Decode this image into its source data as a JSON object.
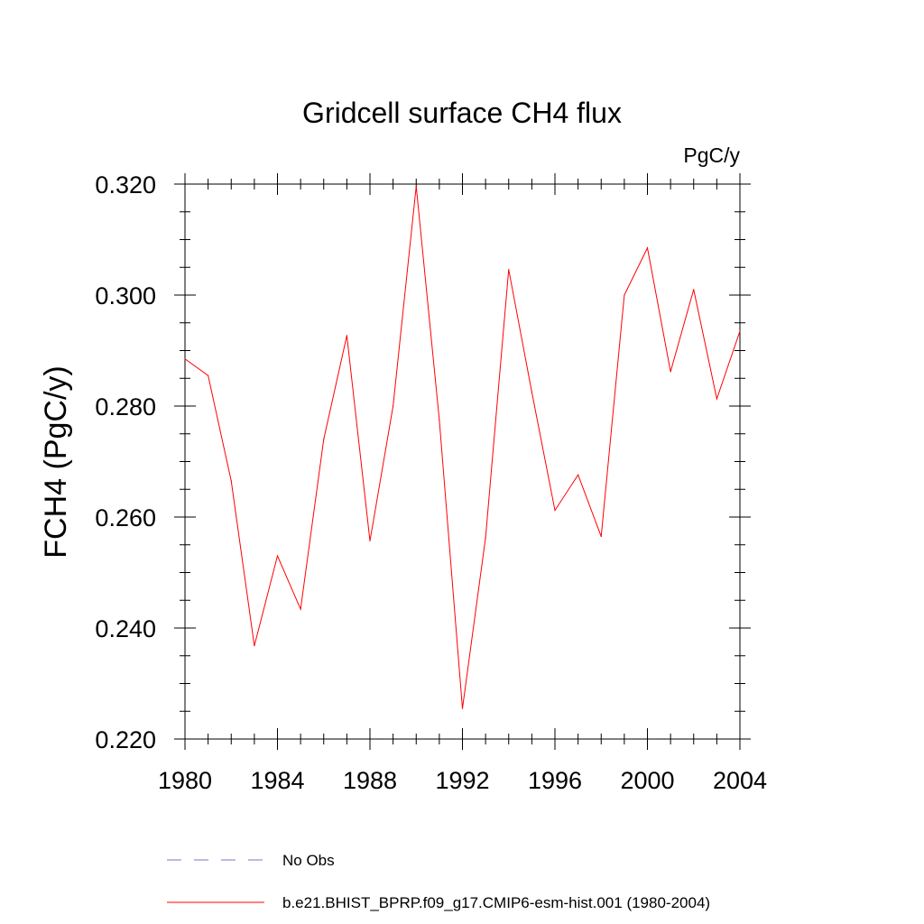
{
  "chart_data": {
    "type": "line",
    "title": "Gridcell surface CH4 flux",
    "units": "PgC/y",
    "ylabel": "FCH4  (PgC/y)",
    "xlabel": "",
    "xlim": [
      1980,
      2004
    ],
    "ylim": [
      0.22,
      0.32
    ],
    "x_ticks": [
      1980,
      1984,
      1988,
      1992,
      1996,
      2000,
      2004
    ],
    "x_tick_labels": [
      "1980",
      "1984",
      "1988",
      "1992",
      "1996",
      "2000",
      "2004"
    ],
    "y_ticks": [
      0.22,
      0.24,
      0.26,
      0.28,
      0.3,
      0.32
    ],
    "y_tick_labels": [
      "0.220",
      "0.240",
      "0.260",
      "0.280",
      "0.300",
      "0.320"
    ],
    "series": [
      {
        "name": "b.e21.BHIST_BPRP.f09_g17.CMIP6-esm-hist.001 (1980-2004)",
        "color": "#ff0000",
        "x": [
          1980,
          1981,
          1982,
          1983,
          1984,
          1985,
          1986,
          1987,
          1988,
          1989,
          1990,
          1991,
          1992,
          1993,
          1994,
          1995,
          1996,
          1997,
          1998,
          1999,
          2000,
          2001,
          2002,
          2003,
          2004
        ],
        "values": [
          0.2885,
          0.2855,
          0.2665,
          0.2368,
          0.253,
          0.2434,
          0.274,
          0.2927,
          0.2557,
          0.28,
          0.3196,
          0.2775,
          0.2255,
          0.2563,
          0.3046,
          0.2825,
          0.2612,
          0.2676,
          0.2565,
          0.3,
          0.3085,
          0.2862,
          0.301,
          0.2813,
          0.2935
        ]
      }
    ],
    "legend": {
      "position": "bottom",
      "entries": [
        {
          "label": "No Obs",
          "style": "dashed",
          "color": "#7a76c8"
        },
        {
          "label": "b.e21.BHIST_BPRP.f09_g17.CMIP6-esm-hist.001 (1980-2004)",
          "style": "solid",
          "color": "#ff0000"
        }
      ]
    }
  }
}
